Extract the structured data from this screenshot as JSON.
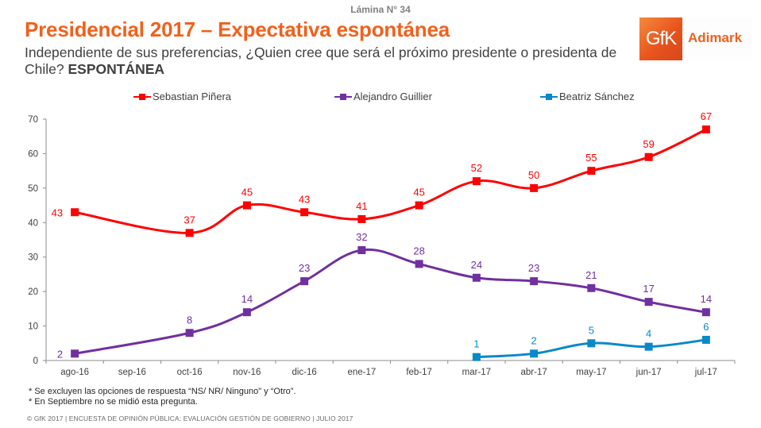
{
  "slide": {
    "number_label": "Lámina N° 34",
    "title": "Presidencial 2017 – Expectativa espontánea",
    "subtitle_text": "Independiente de sus preferencias, ¿Quien cree que será el próximo presidente o presidenta de Chile? ",
    "subtitle_bold": "ESPONTÁNEA"
  },
  "logo": {
    "mark": "GfK",
    "text": "Adimark",
    "color": "#f0611c"
  },
  "notes": [
    "* Se excluyen las opciones de respuesta “NS/ NR/ Ninguno\" y “Otro”.",
    "* En Septiembre no se midió esta pregunta."
  ],
  "footer": "© GfK 2017 | ENCUESTA DE OPINIÓN PÚBLICA: EVALUACIÓN GESTIÓN DE GOBIERNO | JULIO 2017",
  "chart_data": {
    "type": "line",
    "title": "Presidencial 2017 – Expectativa espontánea",
    "xlabel": "",
    "ylabel": "",
    "categories": [
      "ago-16",
      "sep-16",
      "oct-16",
      "nov-16",
      "dic-16",
      "ene-17",
      "feb-17",
      "mar-17",
      "abr-17",
      "may-17",
      "jun-17",
      "jul-17"
    ],
    "ylim": [
      0,
      70
    ],
    "yticks": [
      0,
      10,
      20,
      30,
      40,
      50,
      60,
      70
    ],
    "grid": false,
    "legend_position": "top",
    "smooth": true,
    "series": [
      {
        "name": "Sebastian Piñera",
        "color": "#ff0000",
        "values": [
          43,
          null,
          37,
          45,
          43,
          41,
          45,
          52,
          50,
          55,
          59,
          67
        ]
      },
      {
        "name": "Alejandro Guillier",
        "color": "#7030a0",
        "values": [
          2,
          null,
          8,
          14,
          23,
          32,
          28,
          24,
          23,
          21,
          17,
          14
        ]
      },
      {
        "name": "Beatriz Sánchez",
        "color": "#0a88c9",
        "values": [
          null,
          null,
          null,
          null,
          null,
          null,
          null,
          1,
          2,
          5,
          4,
          6
        ]
      }
    ]
  }
}
